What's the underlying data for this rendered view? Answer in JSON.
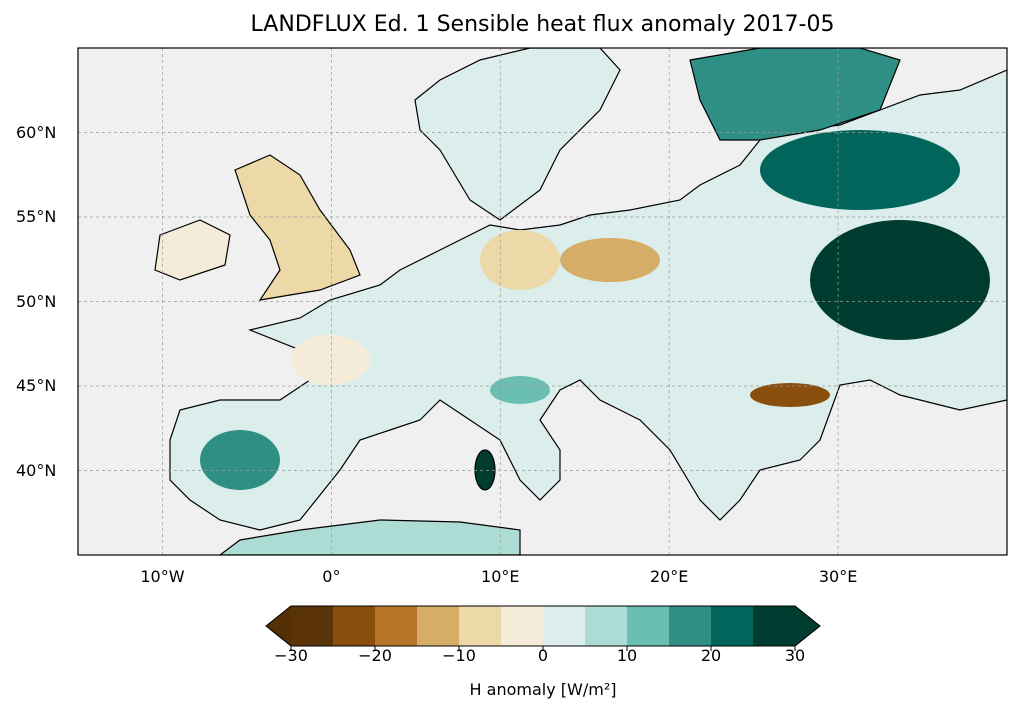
{
  "title": "LANDFLUX Ed. 1 Sensible heat flux anomaly 2017-05",
  "map": {
    "extent": {
      "lon_min": -15,
      "lon_max": 40,
      "lat_min": 35,
      "lat_max": 65
    },
    "lat_ticks": [
      {
        "value": 60,
        "label": "60°N"
      },
      {
        "value": 55,
        "label": "55°N"
      },
      {
        "value": 50,
        "label": "50°N"
      },
      {
        "value": 45,
        "label": "45°N"
      },
      {
        "value": 40,
        "label": "40°N"
      }
    ],
    "lon_ticks": [
      {
        "value": -10,
        "label": "10°W"
      },
      {
        "value": 0,
        "label": "0°"
      },
      {
        "value": 10,
        "label": "10°E"
      },
      {
        "value": 20,
        "label": "20°E"
      },
      {
        "value": 30,
        "label": "30°E"
      }
    ],
    "ocean_color": "#f0f0f0"
  },
  "colorbar": {
    "label": "H anomaly [W/m²]",
    "boundaries": [
      -30,
      -25,
      -20,
      -15,
      -10,
      -5,
      0,
      5,
      10,
      15,
      20,
      25,
      30
    ],
    "colors": [
      "#5a3408",
      "#8a4f0d",
      "#b77528",
      "#d6ad67",
      "#edd8a8",
      "#f4ecd8",
      "#dbeeeb",
      "#acdcd4",
      "#6bbfb2",
      "#2f8f85",
      "#02655c",
      "#013c31"
    ],
    "extend_low_color": "#543005",
    "extend_high_color": "#003c30",
    "tick_labels": [
      {
        "value": -30,
        "label": "−30"
      },
      {
        "value": -20,
        "label": "−20"
      },
      {
        "value": -10,
        "label": "−10"
      },
      {
        "value": 0,
        "label": "0"
      },
      {
        "value": 10,
        "label": "10"
      },
      {
        "value": 20,
        "label": "20"
      },
      {
        "value": 30,
        "label": "30"
      }
    ]
  }
}
